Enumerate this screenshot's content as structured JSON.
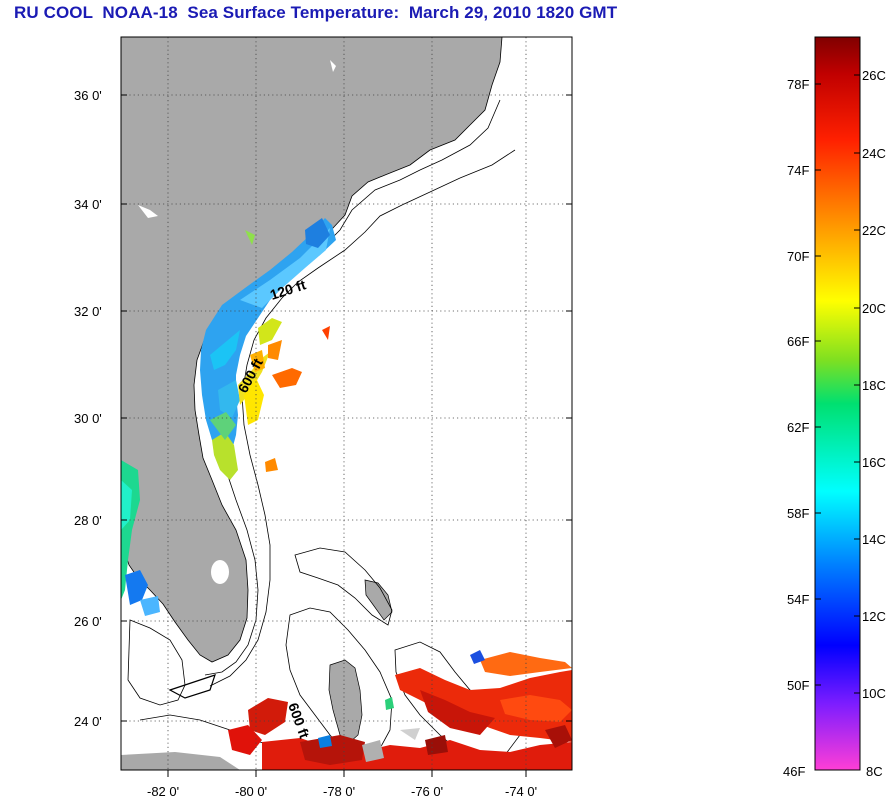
{
  "title": "RU COOL  NOAA-18  Sea Surface Temperature:  March 29, 2010 1820 GMT",
  "map": {
    "lat_labels": [
      "36 0'",
      "34 0'",
      "32 0'",
      "30 0'",
      "28 0'",
      "26 0'",
      "24 0'"
    ],
    "lon_labels": [
      "-82 0'",
      "-80 0'",
      "-78 0'",
      "-76 0'",
      "-74 0'"
    ],
    "lat_range": [
      23.0,
      37.0
    ],
    "lon_range": [
      -83.0,
      -73.0
    ],
    "depth_labels": [
      "120 ft",
      "600 ft",
      "600 ft"
    ],
    "grid": "dotted",
    "colors": {
      "land": "#a9a9a9",
      "water": "#ffffff",
      "bathymetry": "#000000"
    }
  },
  "colorbar": {
    "fahrenheit_labels": [
      "78F",
      "74F",
      "70F",
      "66F",
      "62F",
      "58F",
      "54F",
      "50F",
      "46F"
    ],
    "celsius_labels": [
      "26C",
      "24C",
      "22C",
      "20C",
      "18C",
      "16C",
      "14C",
      "12C",
      "10C",
      "8C"
    ],
    "range_c": [
      8,
      27
    ],
    "gradient": [
      "#ff3ed6",
      "#7d1dff",
      "#0000ff",
      "#0080ff",
      "#00ffff",
      "#00e070",
      "#80e020",
      "#ffff00",
      "#ff9000",
      "#ff2000",
      "#c00000",
      "#800000"
    ]
  }
}
